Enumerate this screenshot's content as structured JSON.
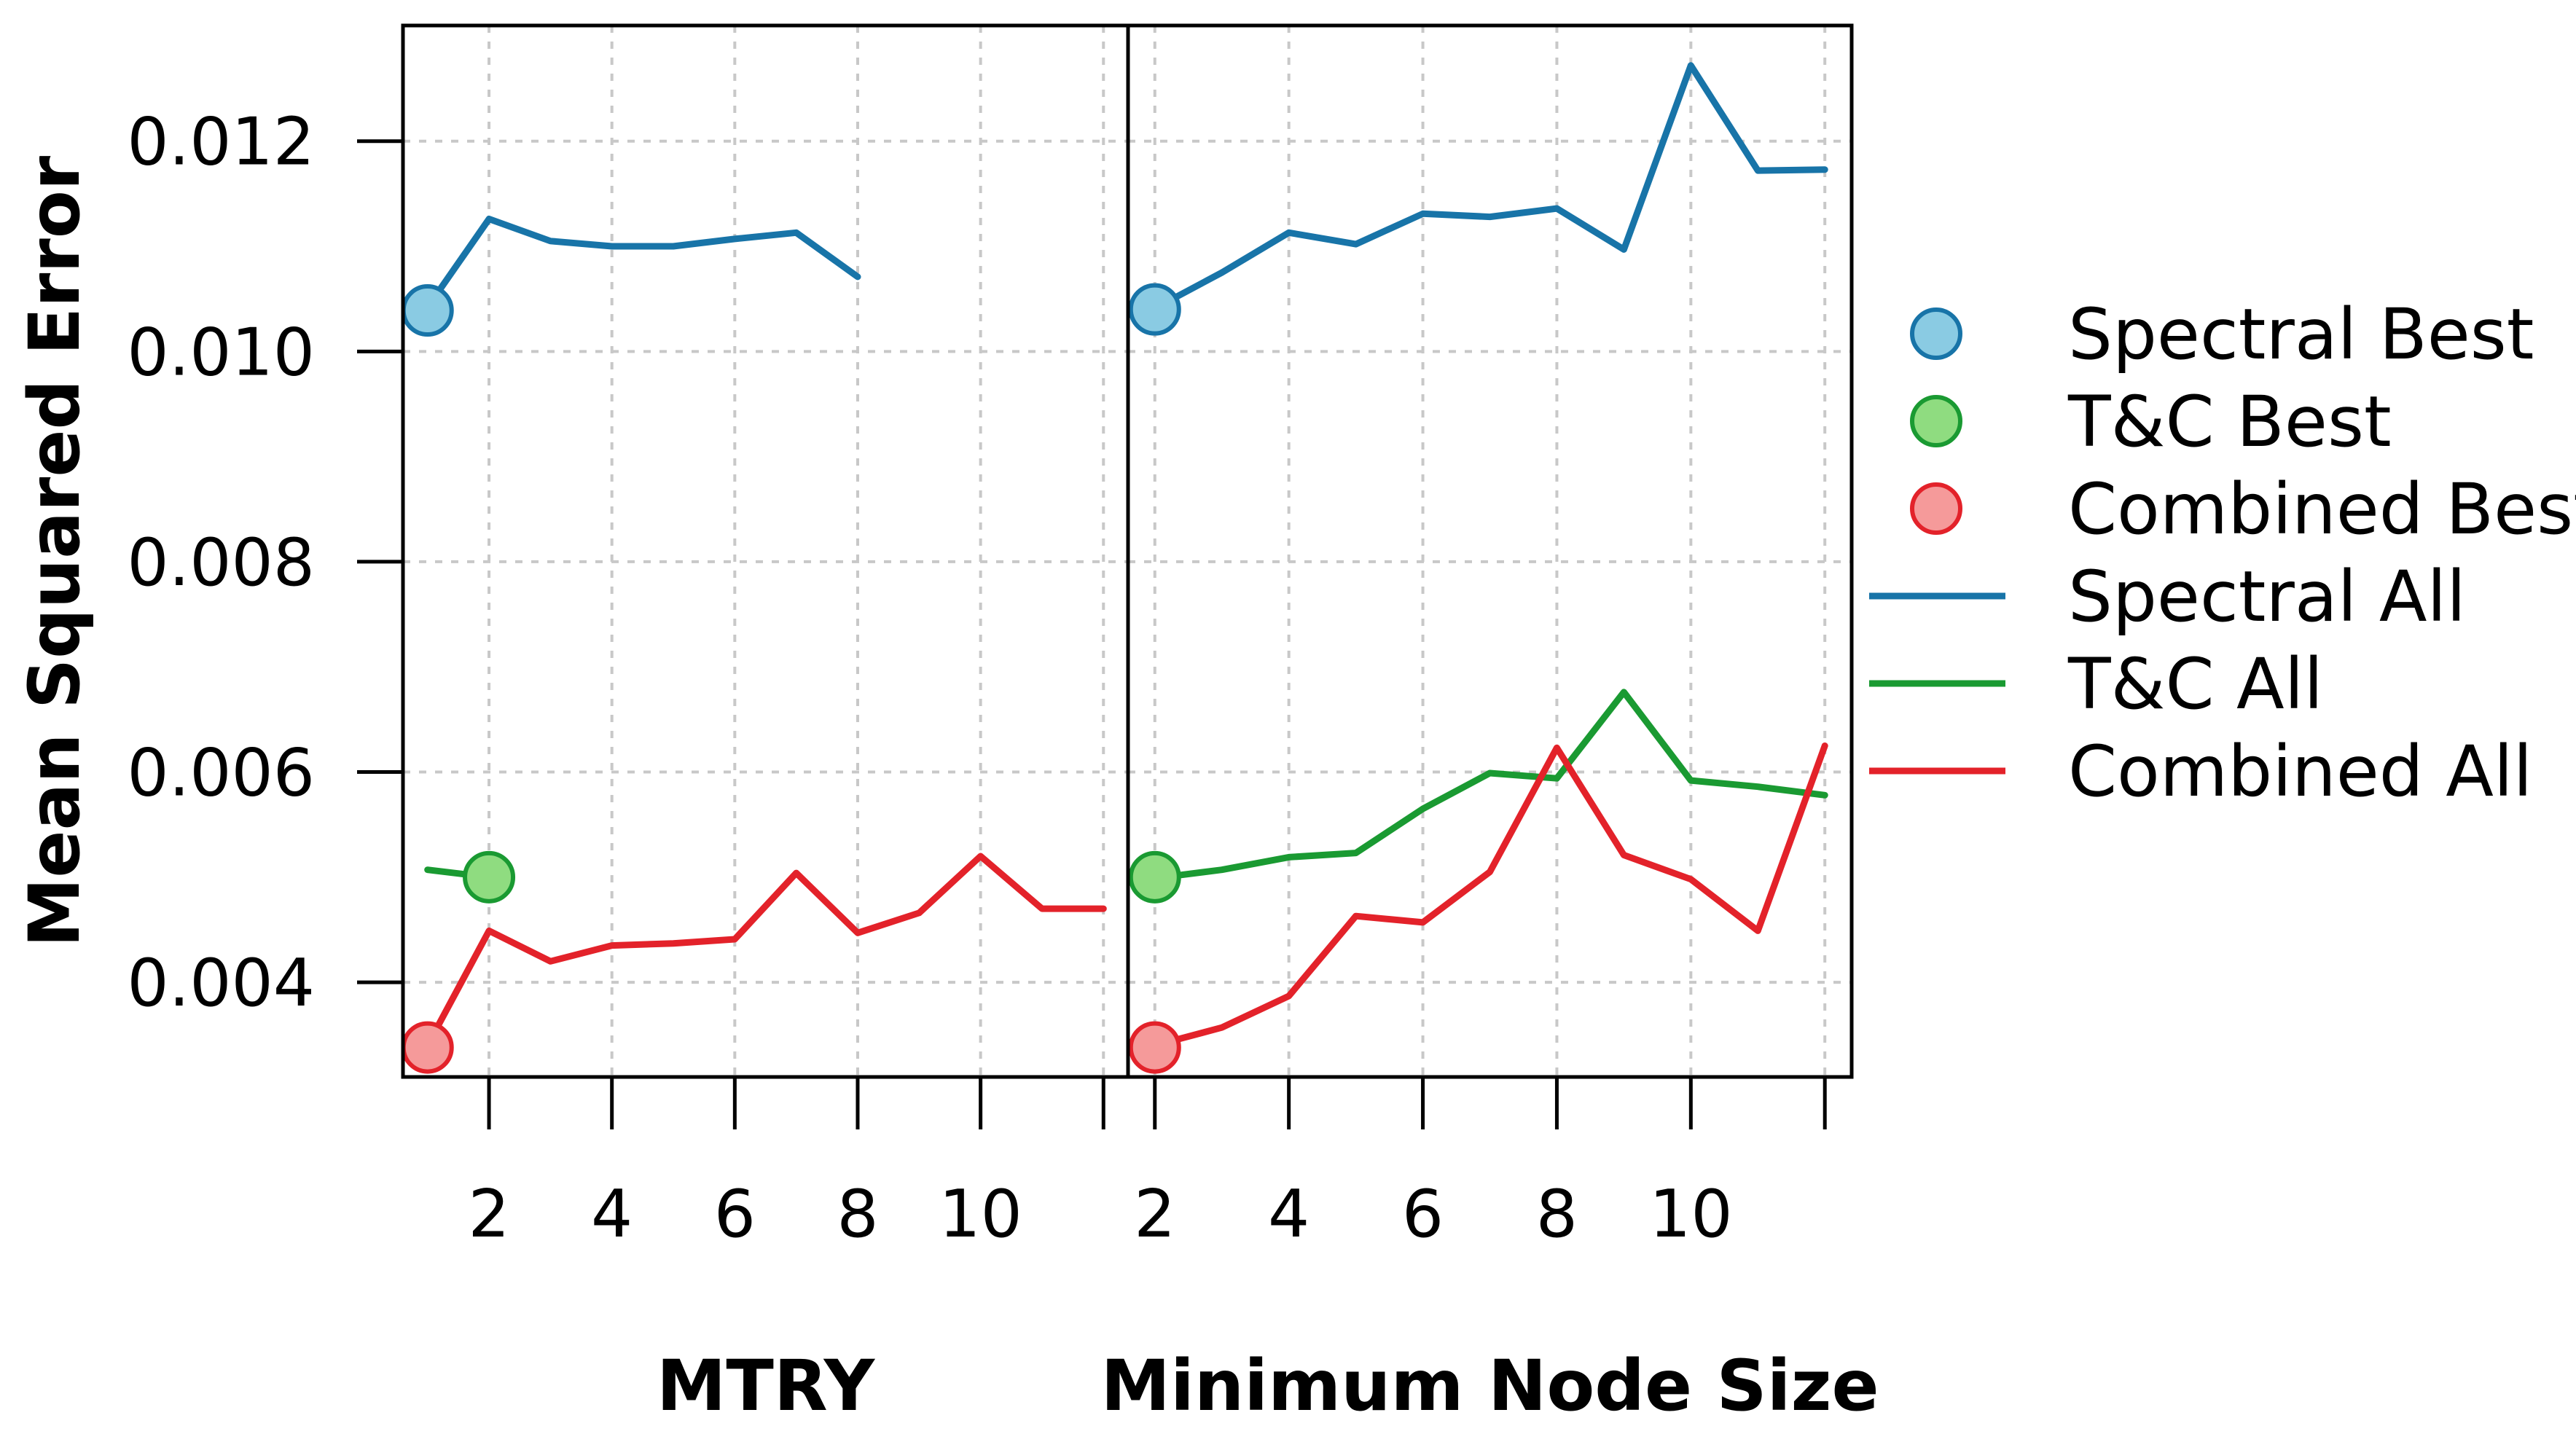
{
  "chart_data": {
    "type": "line",
    "ylabel": "Mean Squared Error",
    "ylim": [
      0.0031,
      0.0131
    ],
    "yticks": [
      0.004,
      0.006,
      0.008,
      0.01,
      0.012
    ],
    "ytick_labels": [
      "0.004",
      "0.006",
      "0.008",
      "0.010",
      "0.012"
    ],
    "grid": true,
    "legend_position": "right",
    "colors": {
      "spectral": "#1874A8",
      "tc": "#1A9A32",
      "combined": "#E3222A",
      "spectral_marker": "#8ACBE3",
      "tc_marker": "#8FDC80",
      "combined_marker": "#F59A9A"
    },
    "panels": [
      {
        "xlabel": "MTRY",
        "xlim": [
          0.6,
          12.4
        ],
        "xticks": [
          2,
          4,
          6,
          8,
          10,
          12
        ],
        "xtick_labels": [
          "2",
          "4",
          "6",
          "8",
          "10",
          ""
        ],
        "series": [
          {
            "name": "Spectral All",
            "key": "spectral",
            "x": [
              1,
              2,
              3,
              4,
              5,
              6,
              7,
              8
            ],
            "y": [
              0.01042,
              0.01126,
              0.01105,
              0.011,
              0.011,
              0.01107,
              0.01113,
              0.01071
            ]
          },
          {
            "name": "T&C All",
            "key": "tc",
            "x": [
              1,
              2
            ],
            "y": [
              0.00507,
              0.005
            ]
          },
          {
            "name": "Combined All",
            "key": "combined",
            "x": [
              1,
              2,
              3,
              4,
              5,
              6,
              7,
              8,
              9,
              10,
              11,
              12
            ],
            "y": [
              0.0034,
              0.00449,
              0.0042,
              0.00435,
              0.00437,
              0.00441,
              0.00504,
              0.00447,
              0.00466,
              0.0052,
              0.0047,
              0.0047
            ]
          }
        ],
        "best": [
          {
            "name": "Spectral Best",
            "key": "spectral",
            "x": 1,
            "y": 0.01039
          },
          {
            "name": "T&C Best",
            "key": "tc",
            "x": 2,
            "y": 0.005
          },
          {
            "name": "Combined Best",
            "key": "combined",
            "x": 1,
            "y": 0.00338
          }
        ]
      },
      {
        "xlabel": "Minimum Node Size",
        "xlim": [
          1.6,
          12.4
        ],
        "xticks": [
          2,
          4,
          6,
          8,
          10,
          12
        ],
        "xtick_labels": [
          "2",
          "4",
          "6",
          "8",
          "10",
          ""
        ],
        "series": [
          {
            "name": "Spectral All",
            "key": "spectral",
            "x": [
              2,
              3,
              4,
              5,
              6,
              7,
              8,
              9,
              10,
              11,
              12
            ],
            "y": [
              0.01041,
              0.01075,
              0.01113,
              0.01102,
              0.01131,
              0.01128,
              0.01136,
              0.01097,
              0.01272,
              0.01172,
              0.01173
            ]
          },
          {
            "name": "T&C All",
            "key": "tc",
            "x": [
              2,
              3,
              4,
              5,
              6,
              7,
              8,
              9,
              10,
              11,
              12
            ],
            "y": [
              0.00499,
              0.00507,
              0.00519,
              0.00523,
              0.00565,
              0.00599,
              0.00594,
              0.00676,
              0.00592,
              0.00586,
              0.00578
            ]
          },
          {
            "name": "Combined All",
            "key": "combined",
            "x": [
              2,
              3,
              4,
              5,
              6,
              7,
              8,
              9,
              10,
              11,
              12
            ],
            "y": [
              0.0034,
              0.00357,
              0.00387,
              0.00463,
              0.00457,
              0.00505,
              0.00623,
              0.00521,
              0.00498,
              0.00449,
              0.00625
            ]
          }
        ],
        "best": [
          {
            "name": "Spectral Best",
            "key": "spectral",
            "x": 2,
            "y": 0.0104
          },
          {
            "name": "T&C Best",
            "key": "tc",
            "x": 2,
            "y": 0.005
          },
          {
            "name": "Combined Best",
            "key": "combined",
            "x": 2,
            "y": 0.00338
          }
        ]
      }
    ],
    "legend": [
      {
        "label": "Spectral Best",
        "kind": "marker",
        "key": "spectral"
      },
      {
        "label": "T&C Best",
        "kind": "marker",
        "key": "tc"
      },
      {
        "label": "Combined Best",
        "kind": "marker",
        "key": "combined"
      },
      {
        "label": "Spectral All",
        "kind": "line",
        "key": "spectral"
      },
      {
        "label": "T&C All",
        "kind": "line",
        "key": "tc"
      },
      {
        "label": "Combined All",
        "kind": "line",
        "key": "combined"
      }
    ]
  }
}
